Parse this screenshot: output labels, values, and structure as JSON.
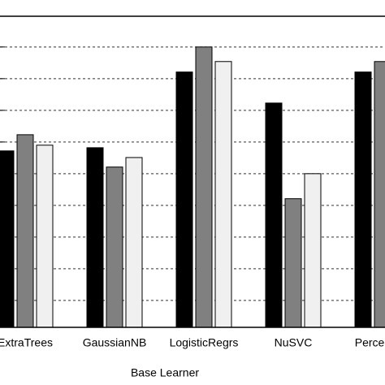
{
  "chart_data": {
    "type": "bar",
    "x_label": "Base Learner",
    "categories": [
      "ExtraTrees",
      "GaussianNB",
      "LogisticRegrs",
      "NuSVC",
      "Perceptron"
    ],
    "series": [
      {
        "color": "#000000",
        "values": [
          5.72,
          5.82,
          8.21,
          7.23,
          8.21
        ]
      },
      {
        "color": "#808080",
        "values": [
          6.23,
          5.21,
          9.0,
          4.21,
          8.54
        ]
      },
      {
        "color": "#f0f0f0",
        "values": [
          5.9,
          5.51,
          8.54,
          5.0,
          null
        ]
      }
    ],
    "ylim": [
      0.15,
      9.97
    ],
    "yticks": [
      1,
      2,
      3,
      4,
      5,
      6,
      7,
      8,
      9
    ],
    "grid": true
  }
}
